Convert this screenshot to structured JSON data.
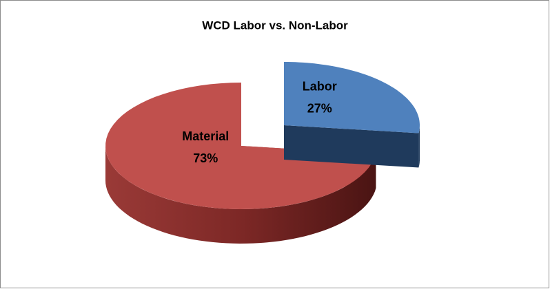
{
  "chart_data": {
    "type": "pie3d",
    "title": "WCD Labor vs. Non-Labor",
    "categories": [
      "Labor",
      "Material"
    ],
    "values": [
      27,
      73
    ],
    "value_labels": [
      "27%",
      "73%"
    ],
    "colors": [
      "#4f81bd",
      "#c0504d"
    ]
  }
}
